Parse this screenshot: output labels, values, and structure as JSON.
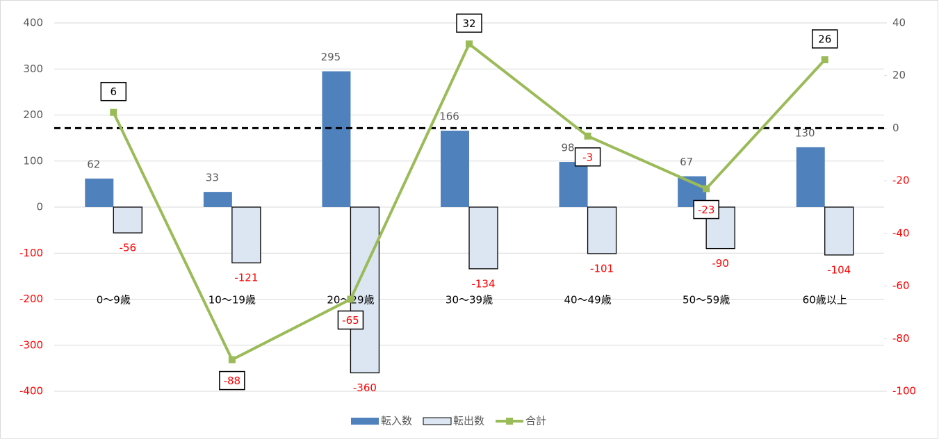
{
  "chart_data": {
    "type": "bar-line-combo",
    "categories": [
      "0〜9歳",
      "10〜19歳",
      "20〜29歳",
      "30〜39歳",
      "40〜49歳",
      "50〜59歳",
      "60歳以上"
    ],
    "series": [
      {
        "name": "転入数",
        "type": "bar",
        "color": "#4f81bd",
        "values": [
          62,
          33,
          295,
          166,
          98,
          67,
          130
        ]
      },
      {
        "name": "転出数",
        "type": "bar",
        "color": "#dce6f2",
        "values": [
          -56,
          -121,
          -360,
          -134,
          -101,
          -90,
          -104
        ]
      },
      {
        "name": "合計",
        "type": "line",
        "axis": "y2",
        "color": "#9bbb59",
        "values": [
          6,
          -88,
          -65,
          32,
          -3,
          -23,
          26
        ]
      }
    ],
    "ylim": [
      -400,
      400
    ],
    "yticks": [
      400,
      300,
      200,
      100,
      0,
      -100,
      -200,
      -300,
      -400
    ],
    "y2lim": [
      -100,
      40
    ],
    "y2ticks": [
      40,
      20,
      0,
      -20,
      -40,
      -60,
      -80,
      -100
    ],
    "y2_reference_line": 0,
    "negative_color": "#ff0000",
    "grid": true,
    "legend": "bottom"
  }
}
